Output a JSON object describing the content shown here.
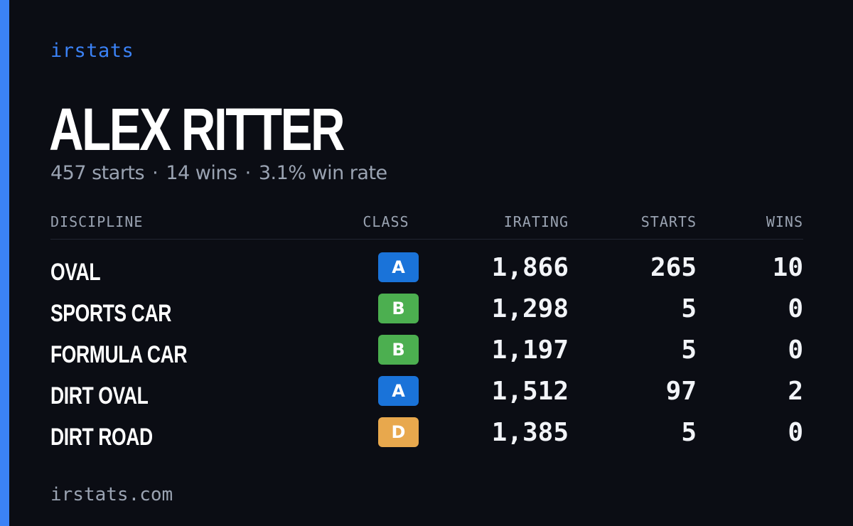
{
  "brand": "irstats",
  "driver": {
    "name": "ALEX RITTER",
    "starts_text": "457 starts",
    "wins_text": "14 wins",
    "win_rate_text": "3.1% win rate",
    "separator": "·"
  },
  "table": {
    "headers": {
      "discipline": "DISCIPLINE",
      "class": "CLASS",
      "irating": "IRATING",
      "starts": "STARTS",
      "wins": "WINS"
    },
    "rows": [
      {
        "discipline": "OVAL",
        "class": "A",
        "class_color": "#1a73d9",
        "irating": "1,866",
        "starts": "265",
        "wins": "10"
      },
      {
        "discipline": "SPORTS CAR",
        "class": "B",
        "class_color": "#4caf50",
        "irating": "1,298",
        "starts": "5",
        "wins": "0"
      },
      {
        "discipline": "FORMULA CAR",
        "class": "B",
        "class_color": "#4caf50",
        "irating": "1,197",
        "starts": "5",
        "wins": "0"
      },
      {
        "discipline": "DIRT OVAL",
        "class": "A",
        "class_color": "#1a73d9",
        "irating": "1,512",
        "starts": "97",
        "wins": "2"
      },
      {
        "discipline": "DIRT ROAD",
        "class": "D",
        "class_color": "#e8a84d",
        "irating": "1,385",
        "starts": "5",
        "wins": "0"
      }
    ]
  },
  "footer": "irstats.com",
  "colors": {
    "accent": "#3b82f6",
    "background": "#0b0d14",
    "muted_text": "#9aa3b2"
  }
}
